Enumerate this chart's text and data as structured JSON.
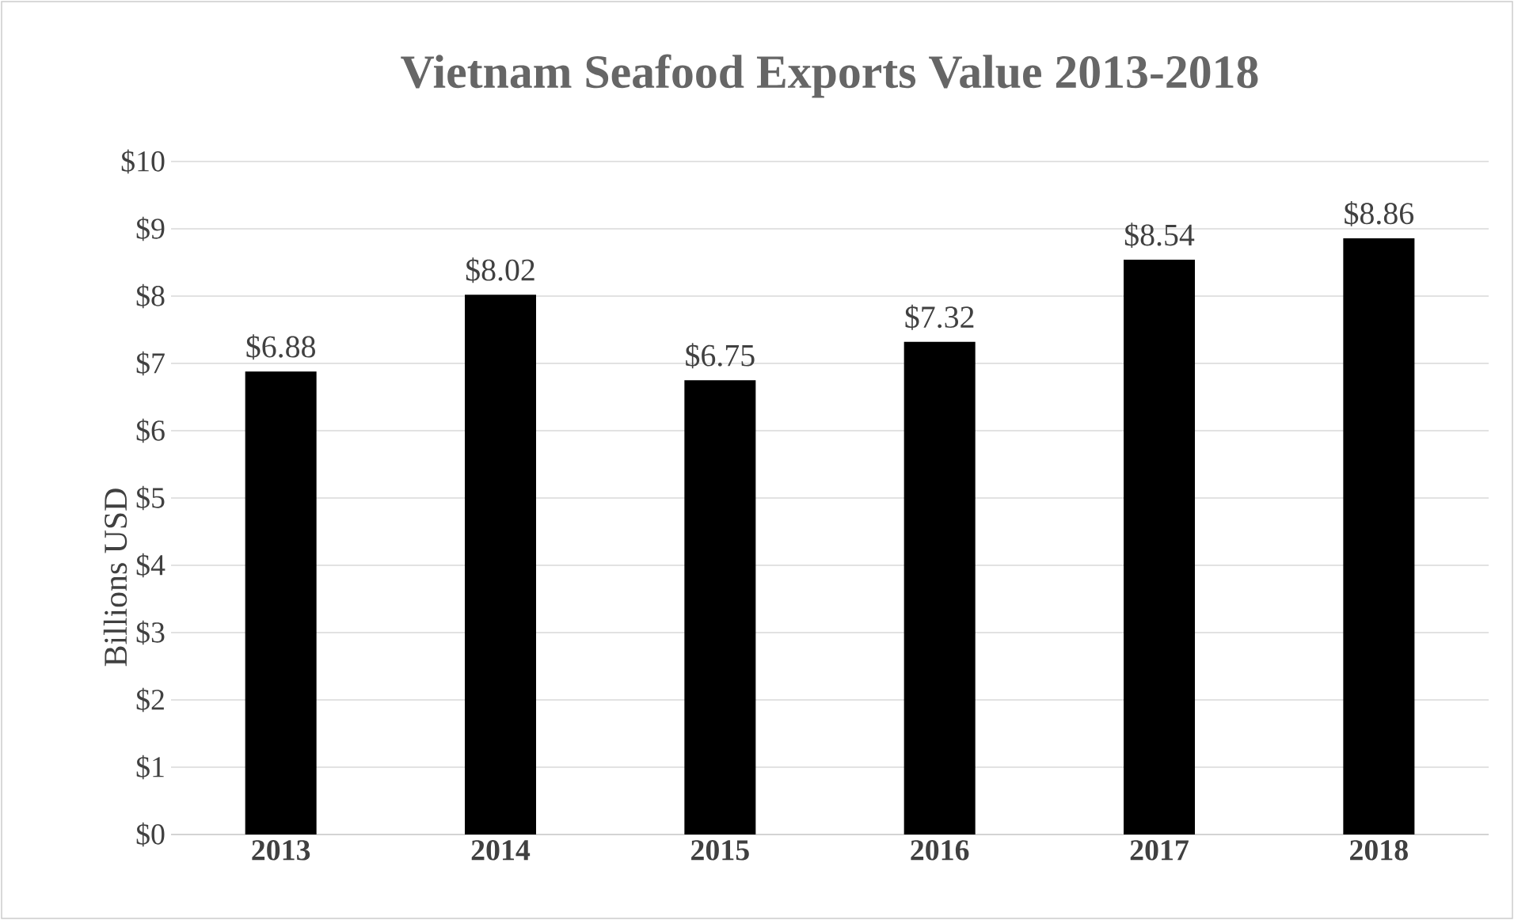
{
  "chart_data": {
    "type": "bar",
    "title": "Vietnam Seafood Exports Value 2013-2018",
    "ylabel": "Billions USD",
    "categories": [
      "2013",
      "2014",
      "2015",
      "2016",
      "2017",
      "2018"
    ],
    "values": [
      6.88,
      8.02,
      6.75,
      7.32,
      8.54,
      8.86
    ],
    "value_labels": [
      "$6.88",
      "$8.02",
      "$6.75",
      "$7.32",
      "$8.54",
      "$8.86"
    ],
    "color": "#000000",
    "ylim": [
      0,
      10
    ],
    "yticks": [
      {
        "value": 0,
        "label": "$0"
      },
      {
        "value": 1,
        "label": "$1"
      },
      {
        "value": 2,
        "label": "$2"
      },
      {
        "value": 3,
        "label": "$3"
      },
      {
        "value": 4,
        "label": "$4"
      },
      {
        "value": 5,
        "label": "$5"
      },
      {
        "value": 6,
        "label": "$6"
      },
      {
        "value": 7,
        "label": "$7"
      },
      {
        "value": 8,
        "label": "$8"
      },
      {
        "value": 9,
        "label": "$9"
      },
      {
        "value": 10,
        "label": "$10"
      }
    ],
    "grid": "y"
  }
}
